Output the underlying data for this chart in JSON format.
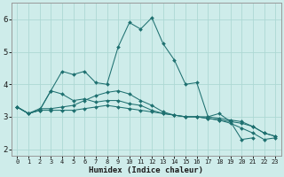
{
  "xlabel": "Humidex (Indice chaleur)",
  "xlim": [
    -0.5,
    23.5
  ],
  "ylim": [
    1.8,
    6.5
  ],
  "background_color": "#ceecea",
  "grid_color": "#add8d4",
  "line_color": "#1e7070",
  "x": [
    0,
    1,
    2,
    3,
    4,
    5,
    6,
    7,
    8,
    9,
    10,
    11,
    12,
    13,
    14,
    15,
    16,
    17,
    18,
    19,
    20,
    21,
    22,
    23
  ],
  "lines": [
    [
      3.3,
      3.1,
      3.2,
      3.8,
      4.4,
      4.3,
      4.4,
      4.05,
      4.0,
      5.15,
      5.9,
      5.7,
      6.05,
      5.25,
      4.75,
      4.0,
      4.05,
      3.0,
      3.1,
      2.85,
      2.3,
      2.35,
      null,
      null
    ],
    [
      3.3,
      3.1,
      3.2,
      3.8,
      3.7,
      3.5,
      3.55,
      3.45,
      3.5,
      3.5,
      3.4,
      3.35,
      3.2,
      3.1,
      3.05,
      3.0,
      3.0,
      3.0,
      2.95,
      2.9,
      2.85,
      2.7,
      2.5,
      2.4
    ],
    [
      3.3,
      3.1,
      3.2,
      3.2,
      3.2,
      3.2,
      3.25,
      3.3,
      3.35,
      3.3,
      3.25,
      3.2,
      3.15,
      3.1,
      3.05,
      3.0,
      3.0,
      2.95,
      2.9,
      2.85,
      2.8,
      2.7,
      2.5,
      2.4
    ],
    [
      3.3,
      3.1,
      3.25,
      3.25,
      3.3,
      3.35,
      3.5,
      3.65,
      3.75,
      3.8,
      3.7,
      3.5,
      3.35,
      3.15,
      3.05,
      3.0,
      3.0,
      2.95,
      2.9,
      2.8,
      2.65,
      2.5,
      2.3,
      2.35
    ]
  ],
  "yticks": [
    2,
    3,
    4,
    5,
    6
  ],
  "xtick_labels": [
    "0",
    "1",
    "2",
    "3",
    "4",
    "5",
    "6",
    "7",
    "8",
    "9",
    "10",
    "11",
    "12",
    "13",
    "14",
    "15",
    "16",
    "17",
    "18",
    "19",
    "20",
    "21",
    "22",
    "23"
  ],
  "xlabel_fontsize": 6.5,
  "ytick_fontsize": 6.5,
  "xtick_fontsize": 5.0
}
